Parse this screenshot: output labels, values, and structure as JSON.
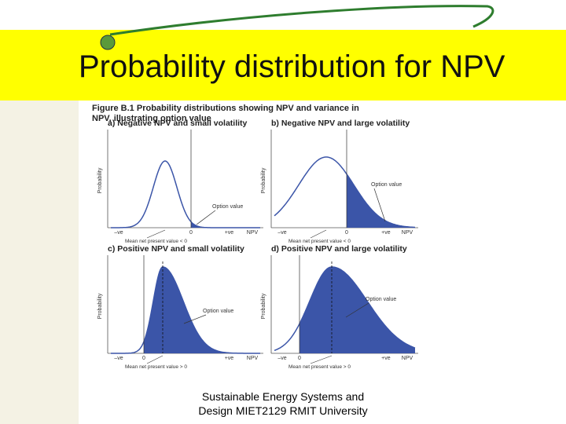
{
  "header": {
    "title": "Probability distribution for NPV"
  },
  "figure": {
    "caption_label": "Figure B.1",
    "caption": "Probability distributions showing NPV and variance in NPV, illustrating option value",
    "panels": [
      {
        "title": "a) Negative NPV and small volatility",
        "y_label": "Probability",
        "x_labels": [
          "–ve",
          "0",
          "+ve",
          "NPV"
        ],
        "mean_label": "Mean net present value < 0",
        "annotation": "Option value"
      },
      {
        "title": "b) Negative NPV and large volatility",
        "y_label": "Probability",
        "x_labels": [
          "–ve",
          "0",
          "+ve",
          "NPV"
        ],
        "mean_label": "Mean net present value < 0",
        "annotation": "Option value"
      },
      {
        "title": "c) Positive NPV and small volatility",
        "y_label": "Probability",
        "x_labels": [
          "–ve",
          "0",
          "+ve",
          "NPV"
        ],
        "mean_label": "Mean net present value > 0",
        "annotation": "Option value"
      },
      {
        "title": "d) Positive NPV and large volatility",
        "y_label": "Probability",
        "x_labels": [
          "–ve",
          "0",
          "+ve",
          "NPV"
        ],
        "mean_label": "Mean net present value > 0",
        "annotation": "Option value"
      }
    ]
  },
  "footer": {
    "text": "Sustainable Energy Systems and Design MIET2129 RMIT University"
  }
}
